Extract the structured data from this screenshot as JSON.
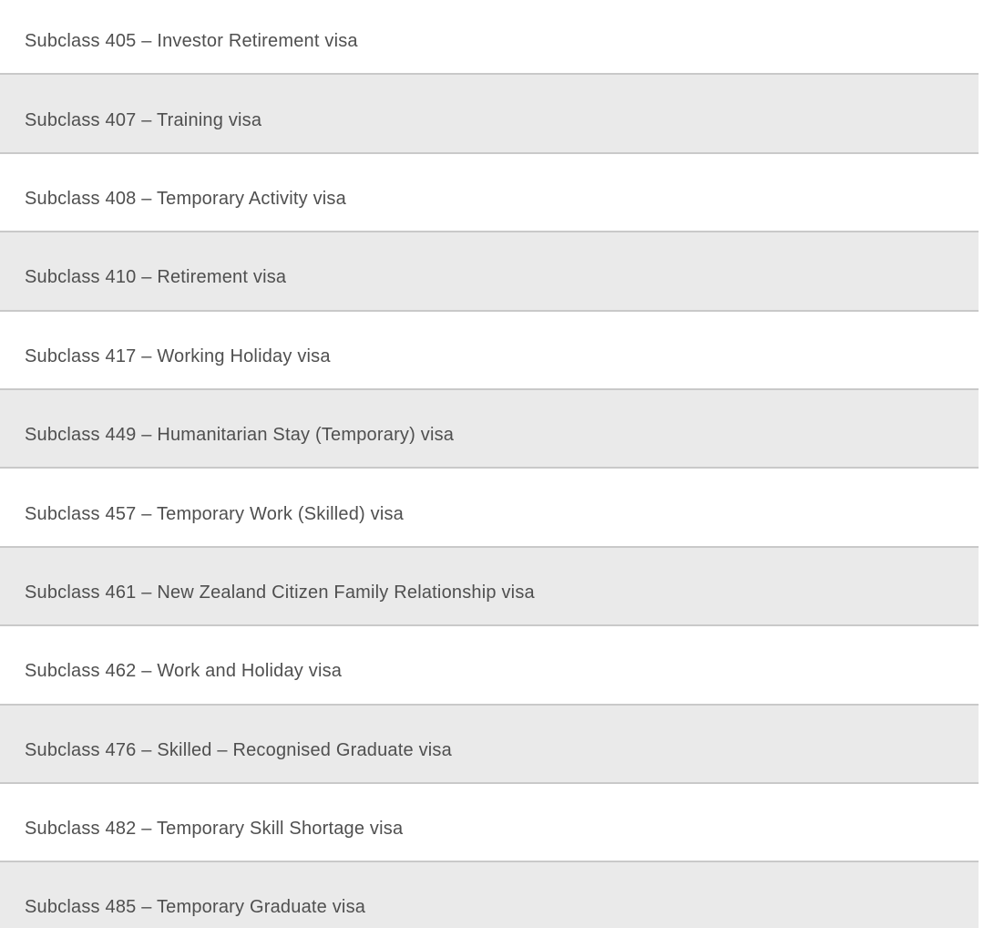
{
  "visa_list": {
    "items": [
      {
        "label": "Subclass 405 – Investor Retirement visa"
      },
      {
        "label": "Subclass 407 – Training visa"
      },
      {
        "label": "Subclass 408 – Temporary Activity visa"
      },
      {
        "label": "Subclass 410 – Retirement visa"
      },
      {
        "label": "Subclass 417 – Working Holiday visa"
      },
      {
        "label": "Subclass 449 – Humanitarian Stay (Temporary) visa"
      },
      {
        "label": "Subclass 457 – Temporary Work (Skilled) visa"
      },
      {
        "label": "Subclass 461 – New Zealand Citizen Family Relationship visa"
      },
      {
        "label": "Subclass 462 – Work and Holiday visa"
      },
      {
        "label": "Subclass 476 – Skilled – Recognised Graduate visa"
      },
      {
        "label": "Subclass 482 – Temporary Skill Shortage visa"
      },
      {
        "label": "Subclass 485 – Temporary Graduate visa"
      }
    ],
    "colors": {
      "row_bg": "#ffffff",
      "row_alt_bg": "#eaeaea",
      "divider": "#c9c9c9",
      "text": "#4f4f4f"
    }
  }
}
